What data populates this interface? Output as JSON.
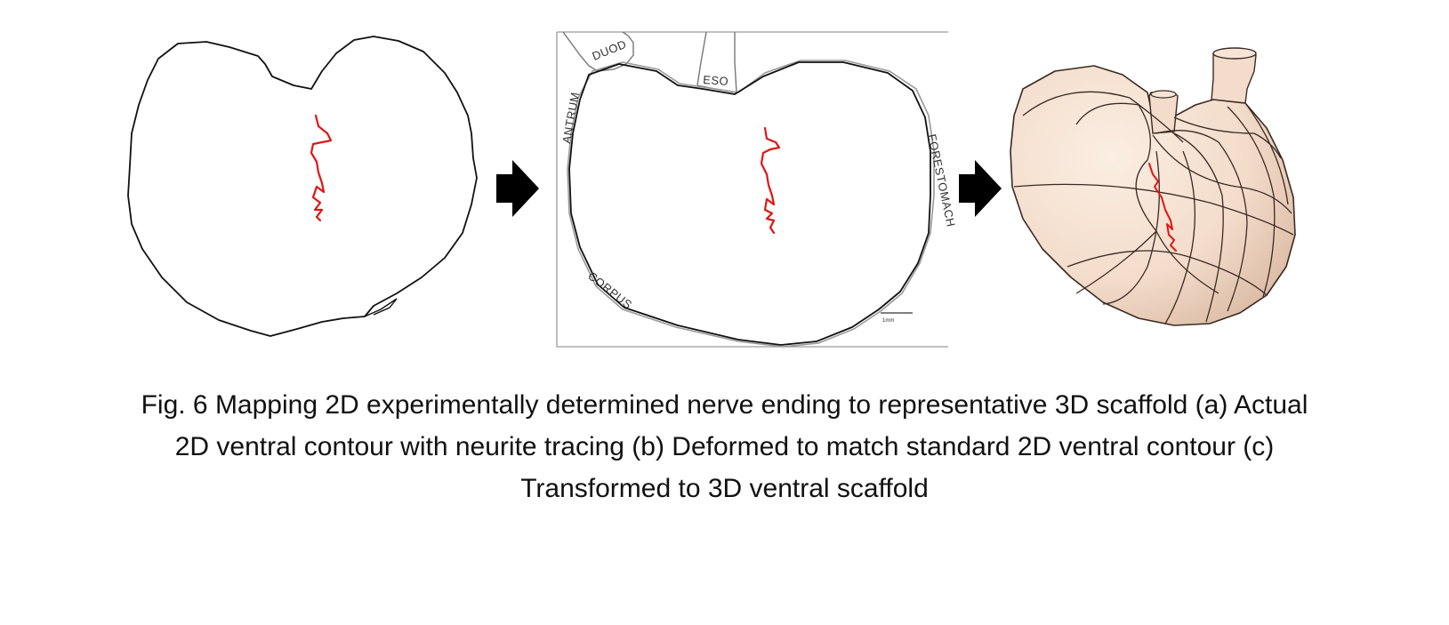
{
  "figure": {
    "panel_b_labels": {
      "duod": "DUOD",
      "eso": "ESO",
      "antrum": "ANTRUM",
      "forestomach": "FORESTOMACH",
      "corpus": "CORPUS",
      "scale_bar": "1mm"
    },
    "colors": {
      "outline": "#111111",
      "neurite": "#e01515",
      "scaffold_fill": "#f3dccb",
      "scaffold_line": "#3a2a22",
      "frame": "#9a9a9a",
      "arrow": "#000000"
    }
  },
  "caption": {
    "line1": "Fig. 6 Mapping 2D experimentally determined nerve ending to representative 3D scaffold (a) Actual",
    "line2": "2D ventral contour with neurite tracing (b) Deformed to match standard 2D ventral contour (c)",
    "line3": "Transformed to 3D ventral scaffold"
  }
}
